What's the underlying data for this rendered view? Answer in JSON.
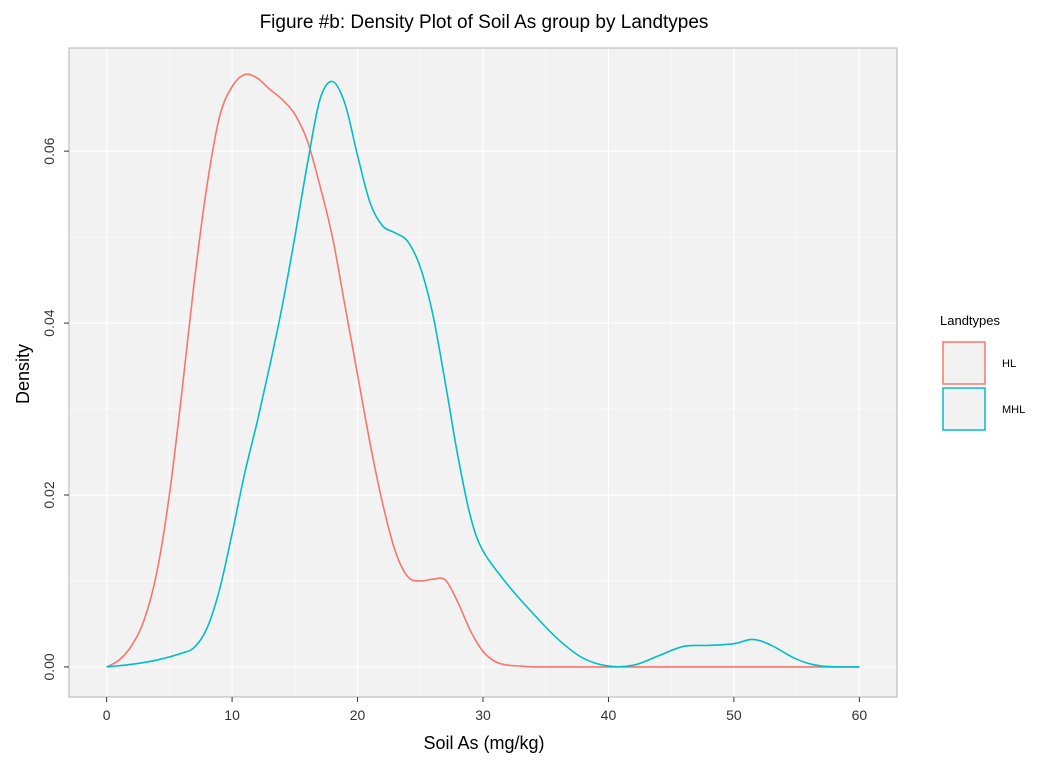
{
  "chart_data": {
    "type": "line",
    "title": "Figure #b: Density Plot of Soil As group by Landtypes",
    "xlabel": "Soil As (mg/kg)",
    "ylabel": "Density",
    "xlim": [
      -3,
      63
    ],
    "ylim": [
      -0.0035,
      0.072
    ],
    "xticks": [
      0,
      10,
      20,
      30,
      40,
      50,
      60
    ],
    "xtick_labels": [
      "0",
      "10",
      "20",
      "30",
      "40",
      "50",
      "60"
    ],
    "yticks": [
      0,
      0.02,
      0.04,
      0.06
    ],
    "ytick_labels": [
      "0.00",
      "0.02",
      "0.04",
      "0.06"
    ],
    "grid": true,
    "legend": {
      "title": "Landtypes",
      "position": "right"
    },
    "series": [
      {
        "name": "HL",
        "color": "#F8766D",
        "x": [
          0,
          1,
          2,
          3,
          4,
          5,
          6,
          7,
          8,
          9,
          10,
          11,
          12,
          13,
          14,
          15,
          16,
          17,
          18,
          19,
          20,
          21,
          22,
          23,
          24,
          25,
          26,
          27,
          28,
          29,
          30,
          31,
          32,
          33,
          34,
          36,
          40,
          45,
          50,
          55,
          60
        ],
        "y": [
          0.0,
          0.0008,
          0.0025,
          0.0055,
          0.011,
          0.02,
          0.032,
          0.045,
          0.056,
          0.064,
          0.0675,
          0.0689,
          0.0685,
          0.0672,
          0.066,
          0.0643,
          0.0612,
          0.056,
          0.05,
          0.042,
          0.034,
          0.026,
          0.019,
          0.0135,
          0.0105,
          0.01,
          0.0102,
          0.0101,
          0.0075,
          0.0042,
          0.0018,
          0.0006,
          0.0002,
          0.0001,
          0.0,
          0.0,
          0.0,
          0.0,
          0.0,
          0.0,
          0.0
        ]
      },
      {
        "name": "MHL",
        "color": "#00BFC4",
        "x": [
          0,
          2,
          4,
          6,
          7,
          8,
          9,
          10,
          11,
          12,
          13,
          14,
          15,
          16,
          17,
          18,
          19,
          20,
          21,
          22,
          23,
          24,
          25,
          26,
          27,
          28,
          29,
          30,
          32,
          34,
          36,
          38,
          40,
          42,
          44,
          46,
          48,
          50,
          51.5,
          53,
          55,
          57,
          60
        ],
        "y": [
          0.0,
          0.0003,
          0.0008,
          0.0016,
          0.0023,
          0.0045,
          0.009,
          0.0155,
          0.0225,
          0.0285,
          0.035,
          0.042,
          0.05,
          0.0585,
          0.066,
          0.0681,
          0.0655,
          0.0595,
          0.054,
          0.0513,
          0.0505,
          0.0495,
          0.0465,
          0.041,
          0.033,
          0.0245,
          0.0175,
          0.0135,
          0.0095,
          0.0062,
          0.0032,
          0.001,
          0.0001,
          0.0002,
          0.0013,
          0.0024,
          0.0025,
          0.0027,
          0.0032,
          0.0025,
          0.0009,
          0.0001,
          0.0
        ]
      }
    ]
  }
}
